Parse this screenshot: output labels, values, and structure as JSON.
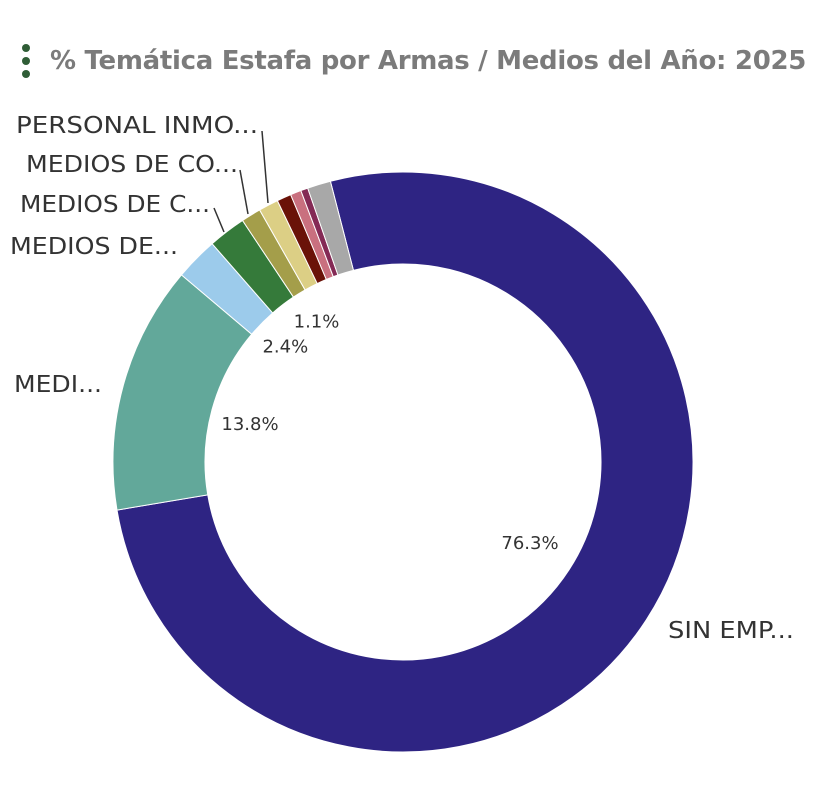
{
  "header": {
    "title": "% Temática Estafa por Armas / Medios del Año: 2025",
    "menu_icon": "vertical-dots-icon"
  },
  "chart_data": {
    "type": "pie",
    "donut": true,
    "title": "% Temática Estafa por Armas / Medios del Año: 2025",
    "slices": [
      {
        "label": "SIN EMP...",
        "value": 76.3,
        "color": "#2e2483",
        "value_label": "76.3%"
      },
      {
        "label": "MEDI...",
        "value": 13.8,
        "color": "#62a89a",
        "value_label": "13.8%"
      },
      {
        "label": "MEDIOS DE...",
        "value": 2.4,
        "color": "#9ccbeb",
        "value_label": "2.4%"
      },
      {
        "label": "MEDIOS DE C...",
        "value": 2.1,
        "color": "#357a3a",
        "value_label": ""
      },
      {
        "label": "MEDIOS DE CO...",
        "value": 1.1,
        "color": "#a49e4a",
        "value_label": "1.1%"
      },
      {
        "label": "PERSONAL INMO...",
        "value": 1.1,
        "color": "#dccf85",
        "value_label": ""
      },
      {
        "label": "",
        "value": 0.8,
        "color": "#6a1208",
        "value_label": ""
      },
      {
        "label": "",
        "value": 0.6,
        "color": "#c9707f",
        "value_label": ""
      },
      {
        "label": "",
        "value": 0.4,
        "color": "#842a55",
        "value_label": ""
      },
      {
        "label": "",
        "value": 1.3,
        "color": "#a8a8a8",
        "value_label": ""
      }
    ]
  }
}
